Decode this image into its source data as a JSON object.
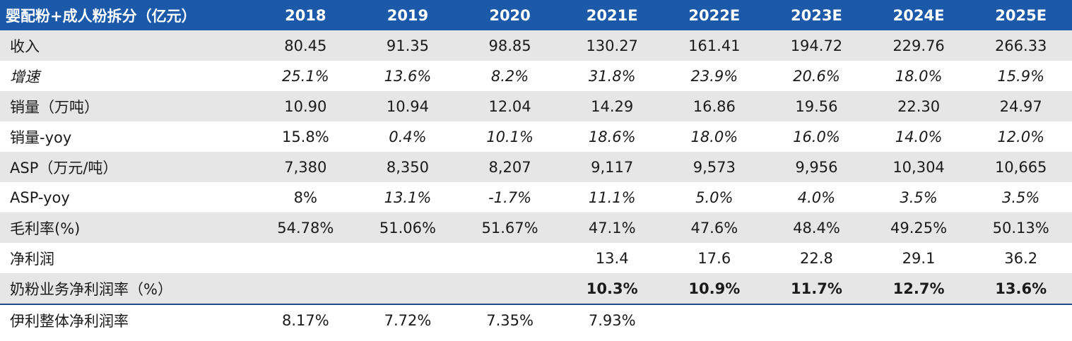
{
  "header": [
    "婴配粉+成人粉拆分（亿元）",
    "2018",
    "2019",
    "2020",
    "2021E",
    "2022E",
    "2023E",
    "2024E",
    "2025E"
  ],
  "rows": [
    {
      "label": "收入",
      "cells": [
        "80.45",
        "91.35",
        "98.85",
        "130.27",
        "161.41",
        "194.72",
        "229.76",
        "266.33"
      ]
    },
    {
      "label": "增速",
      "cells": [
        "25.1%",
        "13.6%",
        "8.2%",
        "31.8%",
        "23.9%",
        "20.6%",
        "18.0%",
        "15.9%"
      ]
    },
    {
      "label": "销量（万吨）",
      "cells": [
        "10.90",
        "10.94",
        "12.04",
        "14.29",
        "16.86",
        "19.56",
        "22.30",
        "24.97"
      ]
    },
    {
      "label": "销量-yoy",
      "cells": [
        "15.8%",
        "0.4%",
        "10.1%",
        "18.6%",
        "18.0%",
        "16.0%",
        "14.0%",
        "12.0%"
      ]
    },
    {
      "label": "ASP（万元/吨）",
      "cells": [
        "7,380",
        "8,350",
        "8,207",
        "9,117",
        "9,573",
        "9,956",
        "10,304",
        "10,665"
      ]
    },
    {
      "label": "ASP-yoy",
      "cells": [
        "8%",
        "13.1%",
        "-1.7%",
        "11.1%",
        "5.0%",
        "4.0%",
        "3.5%",
        "3.5%"
      ]
    },
    {
      "label": "毛利率(%)",
      "cells": [
        "54.78%",
        "51.06%",
        "51.67%",
        "47.1%",
        "47.6%",
        "48.4%",
        "49.25%",
        "50.13%"
      ]
    },
    {
      "label": "净利润",
      "cells": [
        "",
        "",
        "",
        "13.4",
        "17.6",
        "22.8",
        "29.1",
        "36.2"
      ]
    },
    {
      "label": "奶粉业务净利润率（%）",
      "cells": [
        "",
        "",
        "",
        "10.3%",
        "10.9%",
        "11.7%",
        "12.7%",
        "13.6%"
      ]
    },
    {
      "label": "伊利整体净利润率",
      "cells": [
        "8.17%",
        "7.72%",
        "7.35%",
        "7.93%",
        "",
        "",
        "",
        ""
      ]
    }
  ],
  "colors": {
    "header_bg": "#1c5aa9",
    "stripe": "#e6e6e6"
  }
}
